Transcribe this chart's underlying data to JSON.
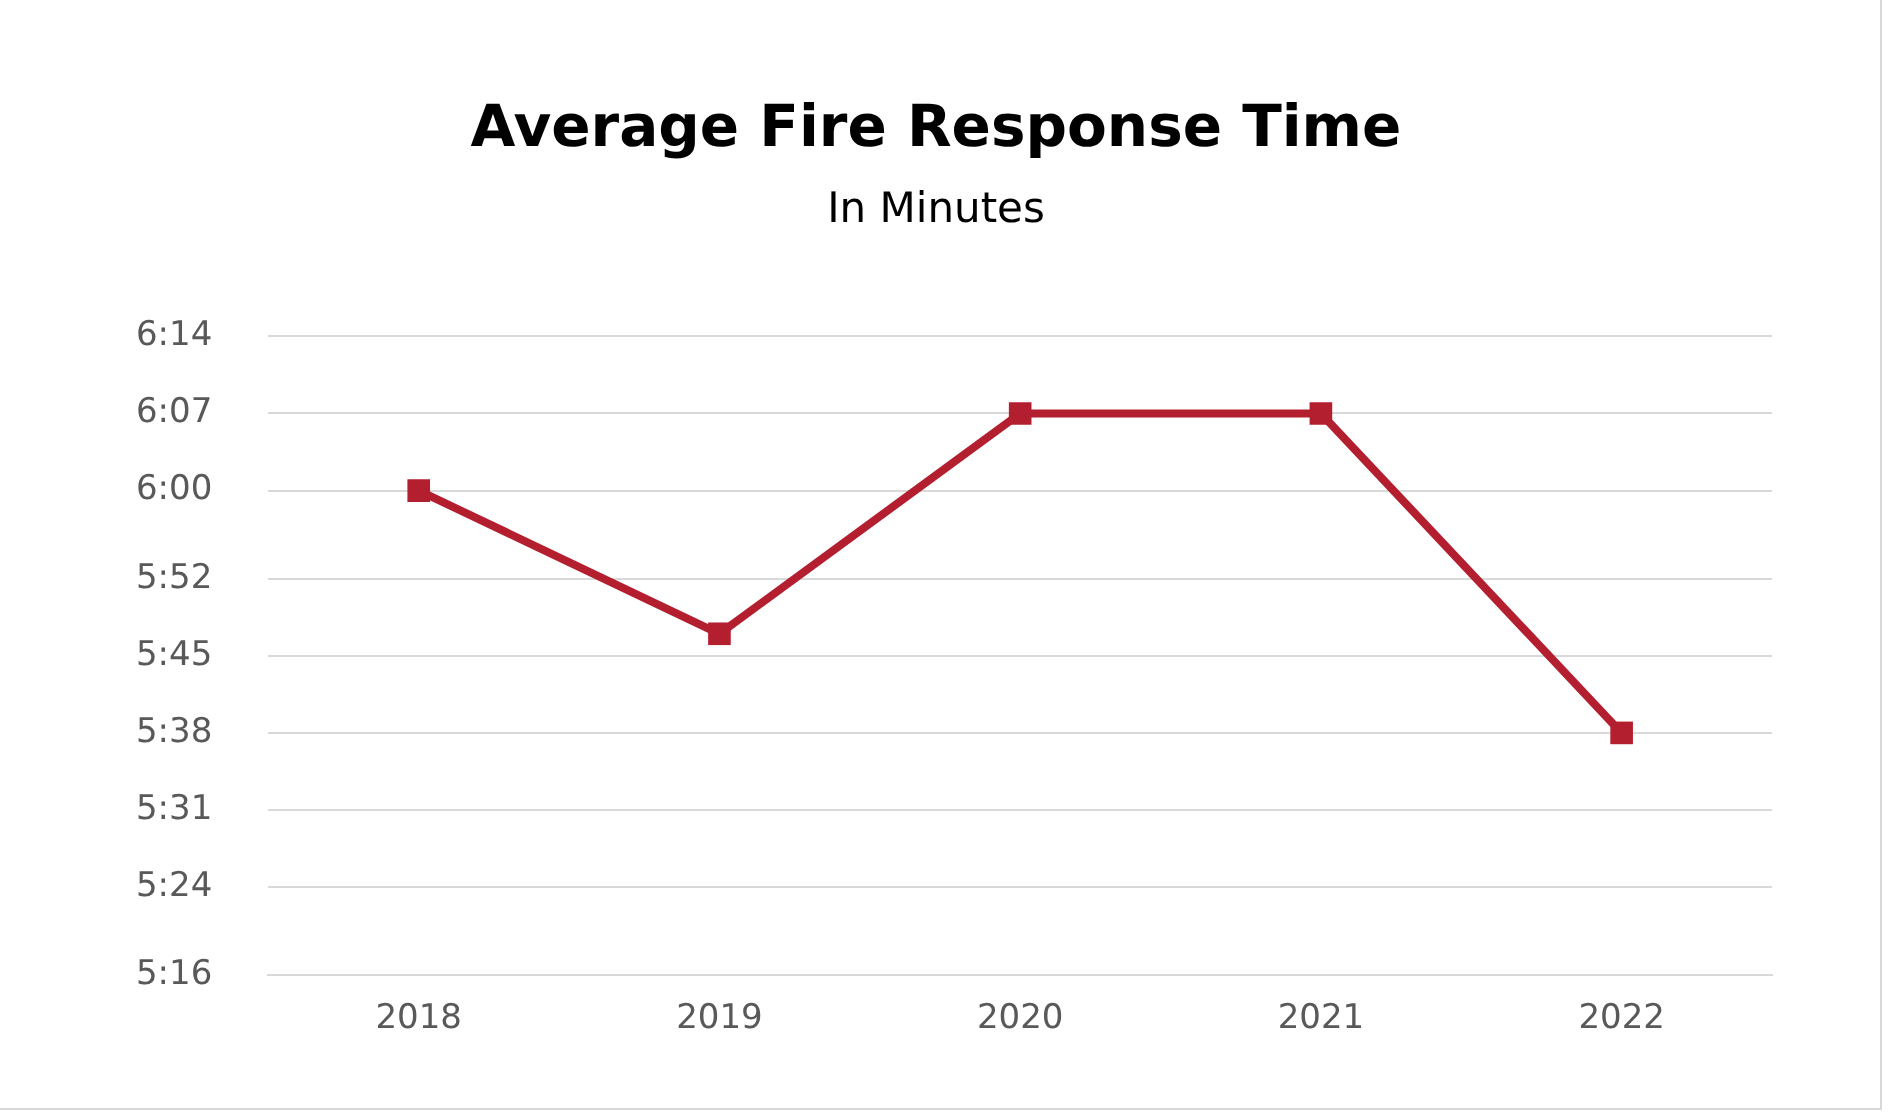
{
  "chart_data": {
    "type": "line",
    "title": "Average Fire Response Time",
    "subtitle": "In Minutes",
    "categories": [
      "2018",
      "2019",
      "2020",
      "2021",
      "2022"
    ],
    "series": [
      {
        "color": "#b41f30",
        "values": [
          360,
          347,
          367,
          367,
          338
        ]
      }
    ],
    "ylim": [
      316,
      374
    ],
    "yticks": [
      {
        "value": 316,
        "label": "5:16"
      },
      {
        "value": 324,
        "label": "5:24"
      },
      {
        "value": 331,
        "label": "5:31"
      },
      {
        "value": 338,
        "label": "5:38"
      },
      {
        "value": 345,
        "label": "5:45"
      },
      {
        "value": 352,
        "label": "5:52"
      },
      {
        "value": 360,
        "label": "6:00"
      },
      {
        "value": 367,
        "label": "6:07"
      },
      {
        "value": 374,
        "label": "6:14"
      }
    ],
    "grid": "y",
    "marker": "square",
    "line_style": "solid",
    "legend": false
  }
}
